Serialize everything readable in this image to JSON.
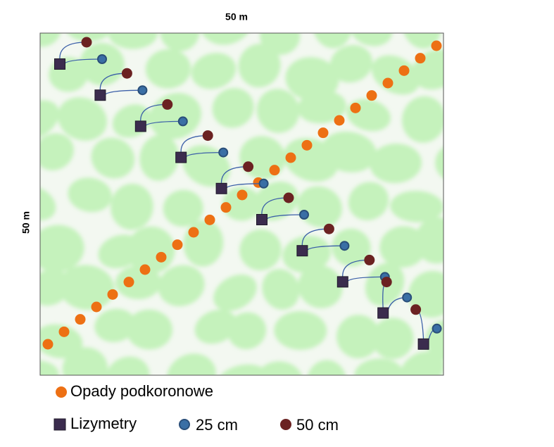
{
  "labels": {
    "top": "50 m",
    "left": "50 m"
  },
  "legend": {
    "throughfall": "Opady podkoronowe",
    "lysimeters": "Lizymetry",
    "depth_25": "25 cm",
    "depth_50": "50 cm"
  }
}
